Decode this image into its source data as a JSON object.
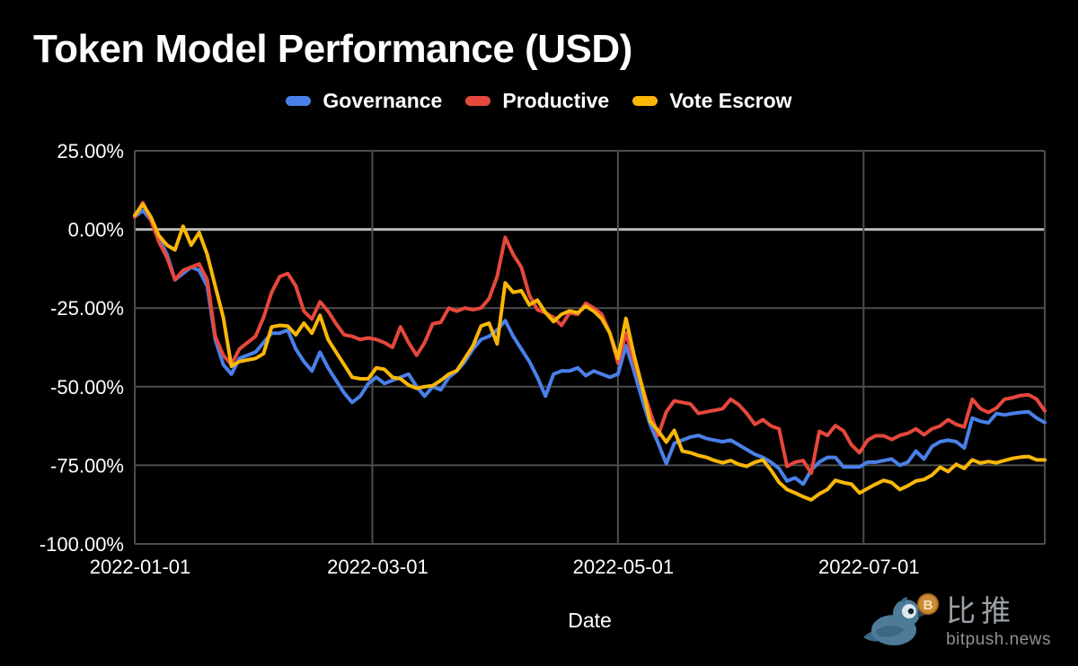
{
  "title": "Token Model Performance (USD)",
  "background_color": "#000000",
  "text_color": "#ffffff",
  "legend": [
    {
      "label": "Governance",
      "color": "#4a80e8",
      "slug": "governance"
    },
    {
      "label": "Productive",
      "color": "#e6483c",
      "slug": "productive"
    },
    {
      "label": "Vote Escrow",
      "color": "#f9b70a",
      "slug": "vote-escrow"
    }
  ],
  "watermark": {
    "brand_cn": "比推",
    "brand_domain": "bitpush.news",
    "bird_color": "#4e7c98",
    "coin_color": "#cf8a33"
  },
  "chart_data": {
    "type": "line",
    "title": "Token Model Performance (USD)",
    "xlabel": "Date",
    "ylabel": "",
    "unit": "percent",
    "ylim": [
      -100,
      25
    ],
    "grid": true,
    "grid_color": "#4d4d4d",
    "zero_line_color": "#b7b7b7",
    "legend_position": "top",
    "x_start_date": "2022-01-01",
    "x_step_days": 2,
    "x_range_days": 226,
    "x_tick_labels": [
      "2022-01-01",
      "2022-03-01",
      "2022-05-01",
      "2022-07-01"
    ],
    "x_tick_days": [
      0,
      59,
      120,
      181
    ],
    "y_ticks": [
      25,
      0,
      -25,
      -50,
      -75,
      -100
    ],
    "y_tick_labels": [
      "25.00%",
      "0.00%",
      "-25.00%",
      "-50.00%",
      "-75.00%",
      "-100.00%"
    ],
    "series": [
      {
        "name": "Governance",
        "color": "#4a80e8",
        "values": [
          4,
          6,
          3,
          -3,
          -8,
          -16,
          -14,
          -12,
          -13,
          -18,
          -35,
          -43,
          -46,
          -41,
          -40,
          -39,
          -36,
          -33,
          -33,
          -32,
          -38,
          -42,
          -45,
          -39,
          -44,
          -48,
          -52,
          -55,
          -53,
          -49,
          -47,
          -49,
          -48,
          -47,
          -46,
          -50,
          -53,
          -50,
          -51,
          -47,
          -45,
          -42,
          -38,
          -35,
          -34,
          -32,
          -29,
          -34,
          -38,
          -42,
          -47,
          -53,
          -46,
          -45,
          -45,
          -44,
          -46.5,
          -45,
          -46,
          -47,
          -46,
          -37,
          -45,
          -54,
          -62,
          -68,
          -74.5,
          -68,
          -67,
          -66,
          -65.5,
          -66.5,
          -67,
          -67.5,
          -67,
          -68.5,
          -70,
          -71.5,
          -72.5,
          -74,
          -76,
          -80,
          -79,
          -81,
          -76.5,
          -74,
          -72.5,
          -72.5,
          -75.5,
          -75.5,
          -75.5,
          -74,
          -74,
          -73.5,
          -73,
          -75,
          -74,
          -70.5,
          -73,
          -69,
          -67.5,
          -67,
          -67.5,
          -69.5,
          -60,
          -61,
          -61.5,
          -58.5,
          -59,
          -58.5,
          -58.2,
          -58,
          -60,
          -61.4
        ]
      },
      {
        "name": "Productive",
        "color": "#e6483c",
        "values": [
          4,
          8.5,
          3,
          -4,
          -9,
          -16,
          -13,
          -12,
          -11,
          -16,
          -34,
          -40,
          -43,
          -38,
          -36,
          -34,
          -28,
          -20,
          -15,
          -14,
          -18,
          -26,
          -28.5,
          -23,
          -26,
          -30,
          -33.5,
          -34,
          -35,
          -34.5,
          -35,
          -36,
          -37.5,
          -31,
          -36,
          -40,
          -36,
          -30,
          -29.5,
          -25,
          -26,
          -25,
          -25.5,
          -25,
          -22,
          -15,
          -2.5,
          -8,
          -12,
          -21,
          -25.5,
          -26.5,
          -28,
          -30.5,
          -26.5,
          -27,
          -23.5,
          -25,
          -27,
          -33,
          -42.5,
          -33,
          -42,
          -50,
          -58,
          -65.5,
          -58,
          -54.5,
          -55,
          -55.5,
          -58.5,
          -58,
          -57.5,
          -57,
          -54,
          -55.7,
          -58.5,
          -62,
          -60.5,
          -62.5,
          -63.4,
          -75.3,
          -74,
          -73.5,
          -77.5,
          -64.2,
          -65.5,
          -62.4,
          -64,
          -68.5,
          -71,
          -67,
          -65.6,
          -65.6,
          -66.8,
          -65.5,
          -64.8,
          -63.4,
          -65.3,
          -63.4,
          -62.5,
          -60.5,
          -62,
          -62.8,
          -54,
          -57,
          -58.2,
          -56.8,
          -54,
          -53.5,
          -52.8,
          -52.6,
          -54,
          -57.7
        ]
      },
      {
        "name": "Vote Escrow",
        "color": "#f9b70a",
        "values": [
          4.5,
          8,
          4,
          -2,
          -5,
          -6.5,
          1,
          -5,
          -1,
          -8,
          -18,
          -28,
          -43.5,
          -42,
          -41.5,
          -41,
          -39.5,
          -31,
          -30.5,
          -30.7,
          -33.5,
          -29.8,
          -33,
          -27.3,
          -35,
          -39,
          -43,
          -47,
          -47.5,
          -47.5,
          -44,
          -44.5,
          -47,
          -47.5,
          -49.5,
          -50.5,
          -50,
          -49.7,
          -48,
          -46,
          -44.9,
          -41,
          -37,
          -30.7,
          -29.8,
          -36.4,
          -17,
          -20,
          -19.5,
          -24,
          -22.5,
          -26.4,
          -29.3,
          -27,
          -25.9,
          -26.5,
          -24.4,
          -26,
          -28.4,
          -33,
          -41,
          -28.3,
          -40,
          -50,
          -61,
          -64,
          -67.6,
          -63.9,
          -70.5,
          -71,
          -71.9,
          -72.5,
          -73.5,
          -74.2,
          -73.5,
          -74.7,
          -75.3,
          -74,
          -73.3,
          -76.5,
          -80.4,
          -82.7,
          -83.8,
          -85,
          -86,
          -84.1,
          -82.7,
          -79.8,
          -80.5,
          -81,
          -83.8,
          -82.4,
          -81,
          -79.8,
          -80.5,
          -82.7,
          -81.5,
          -80,
          -79.5,
          -78.1,
          -75.6,
          -77,
          -74.7,
          -76,
          -73.3,
          -74.3,
          -73.8,
          -74.2,
          -73.5,
          -72.8,
          -72.4,
          -72.2,
          -73.3,
          -73.3
        ]
      }
    ]
  }
}
